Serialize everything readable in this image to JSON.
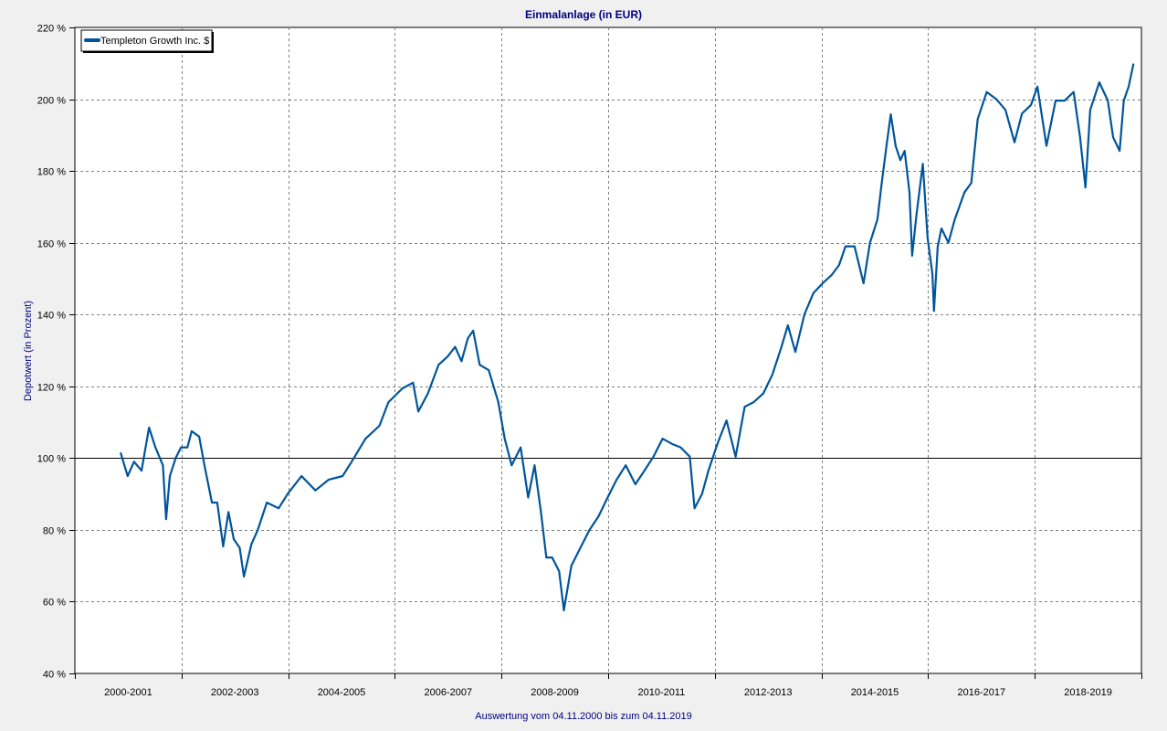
{
  "chart_data": {
    "type": "line",
    "title": "Einmalanlage (in EUR)",
    "ylabel": "Depotwert (in Prozent)",
    "xlabel": "Auswertung vom 04.11.2000 bis zum 04.11.2019",
    "ylim": [
      40,
      220
    ],
    "xlim": [
      2000,
      2020
    ],
    "yticks": [
      40,
      60,
      80,
      100,
      120,
      140,
      160,
      180,
      200,
      220
    ],
    "ytick_labels": [
      "40 %",
      "60 %",
      "80 %",
      "100 %",
      "120 %",
      "140 %",
      "160 %",
      "180 %",
      "200 %",
      "220 %"
    ],
    "xtick_labels": [
      "2000-2001",
      "2002-2003",
      "2004-2005",
      "2006-2007",
      "2008-2009",
      "2010-2011",
      "2012-2013",
      "2014-2015",
      "2016-2017",
      "2018-2019"
    ],
    "grid": true,
    "reference_line": 100,
    "legend_position": "top-left",
    "series": [
      {
        "name": "Templeton Growth Inc. $",
        "color": "#00559b",
        "x": [
          2000.86,
          2000.99,
          2001.11,
          2001.25,
          2001.39,
          2001.51,
          2001.65,
          2001.71,
          2001.78,
          2001.89,
          2001.99,
          2002.11,
          2002.19,
          2002.33,
          2002.43,
          2002.57,
          2002.67,
          2002.78,
          2002.88,
          2002.98,
          2003.09,
          2003.17,
          2003.31,
          2003.43,
          2003.6,
          2003.82,
          2003.99,
          2004.25,
          2004.51,
          2004.76,
          2005.02,
          2005.19,
          2005.45,
          2005.71,
          2005.88,
          2006.14,
          2006.34,
          2006.44,
          2006.62,
          2006.82,
          2006.99,
          2007.13,
          2007.25,
          2007.37,
          2007.47,
          2007.59,
          2007.76,
          2007.94,
          2008.06,
          2008.19,
          2008.36,
          2008.5,
          2008.62,
          2008.74,
          2008.84,
          2008.95,
          2009.08,
          2009.17,
          2009.31,
          2009.48,
          2009.65,
          2009.82,
          2009.99,
          2010.16,
          2010.33,
          2010.51,
          2010.68,
          2010.85,
          2011.02,
          2011.19,
          2011.36,
          2011.53,
          2011.62,
          2011.76,
          2011.88,
          2012.05,
          2012.22,
          2012.39,
          2012.56,
          2012.73,
          2012.91,
          2013.08,
          2013.25,
          2013.37,
          2013.51,
          2013.68,
          2013.85,
          2014.02,
          2014.19,
          2014.33,
          2014.45,
          2014.62,
          2014.79,
          2014.91,
          2015.05,
          2015.13,
          2015.22,
          2015.3,
          2015.39,
          2015.48,
          2015.56,
          2015.65,
          2015.7,
          2015.78,
          2015.9,
          2015.99,
          2016.08,
          2016.11,
          2016.18,
          2016.25,
          2016.38,
          2016.5,
          2016.68,
          2016.81,
          2016.93,
          2017.1,
          2017.28,
          2017.45,
          2017.62,
          2017.76,
          2017.93,
          2018.05,
          2018.22,
          2018.39,
          2018.56,
          2018.73,
          2018.85,
          2018.95,
          2019.04,
          2019.21,
          2019.37,
          2019.47,
          2019.59,
          2019.67,
          2019.76,
          2019.85
        ],
        "y": [
          101.4,
          95,
          99,
          96.5,
          108.5,
          103,
          98,
          83,
          95,
          100,
          103,
          103,
          107.5,
          106,
          98,
          87.6,
          87.6,
          75.4,
          85,
          77.4,
          75,
          67,
          76,
          80,
          87.6,
          86,
          90,
          95,
          91,
          94,
          95,
          99,
          105.4,
          109,
          115.6,
          119.4,
          121,
          113,
          118,
          126,
          128.3,
          131,
          127,
          133.4,
          135.5,
          126,
          124.5,
          115.6,
          105.4,
          98,
          103,
          89,
          98,
          85,
          72.3,
          72.3,
          68.5,
          57.6,
          70,
          75,
          80,
          83.8,
          89,
          94,
          98,
          92.7,
          96.5,
          100.4,
          105.4,
          104,
          103,
          100.4,
          86,
          90,
          96.5,
          104,
          110.5,
          100.4,
          114.3,
          115.6,
          118,
          123.3,
          131,
          137,
          129.6,
          140,
          146,
          148.7,
          151,
          153.8,
          159,
          159,
          148.7,
          160,
          166.5,
          176.7,
          187,
          195.8,
          187,
          183,
          185.6,
          174,
          156.4,
          167.7,
          182,
          161.4,
          151.3,
          141,
          158.9,
          164,
          160,
          166.5,
          174,
          176.7,
          194.5,
          202,
          200,
          197,
          188,
          196,
          198.4,
          203.5,
          187,
          199.6,
          199.6,
          202,
          189.4,
          175.4,
          197,
          204.7,
          199.6,
          189.4,
          185.6,
          199.6,
          203.5,
          209.8
        ]
      }
    ]
  }
}
